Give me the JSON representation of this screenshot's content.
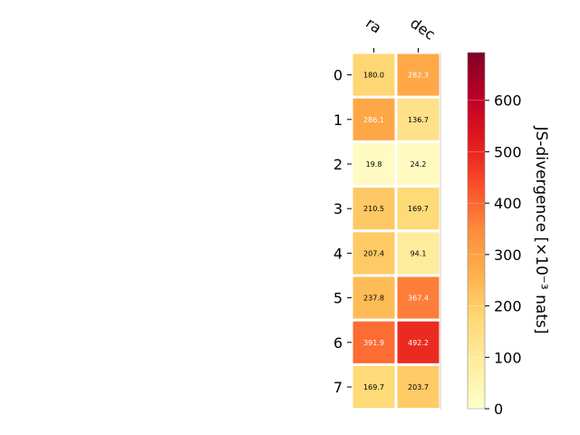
{
  "chart_data": {
    "type": "heatmap",
    "columns": [
      "ra",
      "dec"
    ],
    "rows": [
      "0",
      "1",
      "2",
      "3",
      "4",
      "5",
      "6",
      "7"
    ],
    "values": [
      [
        180.0,
        282.3
      ],
      [
        286.1,
        136.7
      ],
      [
        19.8,
        24.2
      ],
      [
        210.5,
        169.7
      ],
      [
        207.4,
        94.1
      ],
      [
        237.8,
        367.4
      ],
      [
        391.9,
        492.2
      ],
      [
        169.7,
        203.7
      ]
    ],
    "value_format": "0.1f",
    "colormap": "YlOrRd",
    "colorbar": {
      "label": "JS-divergence [×10⁻³ nats]",
      "ticks": [
        "0",
        "100",
        "200",
        "300",
        "400",
        "500",
        "600"
      ],
      "vmin": 0,
      "vmax": 693
    },
    "colormap_stops": [
      "#ffffcc",
      "#ffeda0",
      "#fed976",
      "#feb24c",
      "#fd8d3c",
      "#fc4e2a",
      "#e31a1c",
      "#bd0026",
      "#800026"
    ],
    "text_colors": {
      "dark": "#000000",
      "light": "#ffffff"
    }
  }
}
